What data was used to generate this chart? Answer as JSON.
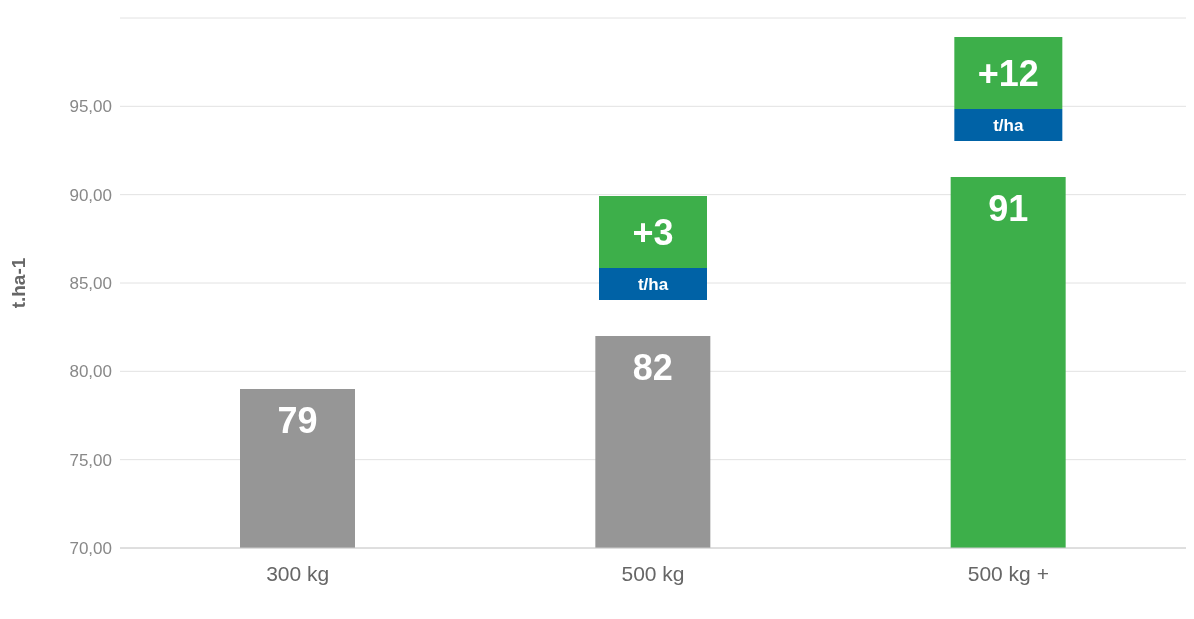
{
  "chart_data": {
    "type": "bar",
    "ylabel": "t.ha-1",
    "categories": [
      "300 kg",
      "500 kg",
      "500 kg +"
    ],
    "values": [
      79,
      82,
      91
    ],
    "colors": [
      "#969696",
      "#969696",
      "#3daf4a"
    ],
    "data_labels": true,
    "ylim": [
      70,
      100
    ],
    "yticks": [
      {
        "value": 70,
        "label": "70,00"
      },
      {
        "value": 75,
        "label": "75,00"
      },
      {
        "value": 80,
        "label": "80,00"
      },
      {
        "value": 85,
        "label": "85,00"
      },
      {
        "value": 90,
        "label": "90,00"
      },
      {
        "value": 95,
        "label": "95,00"
      }
    ],
    "grid": "y",
    "annotations": [
      "+3 t/ha",
      "+12 t/ha"
    ]
  }
}
